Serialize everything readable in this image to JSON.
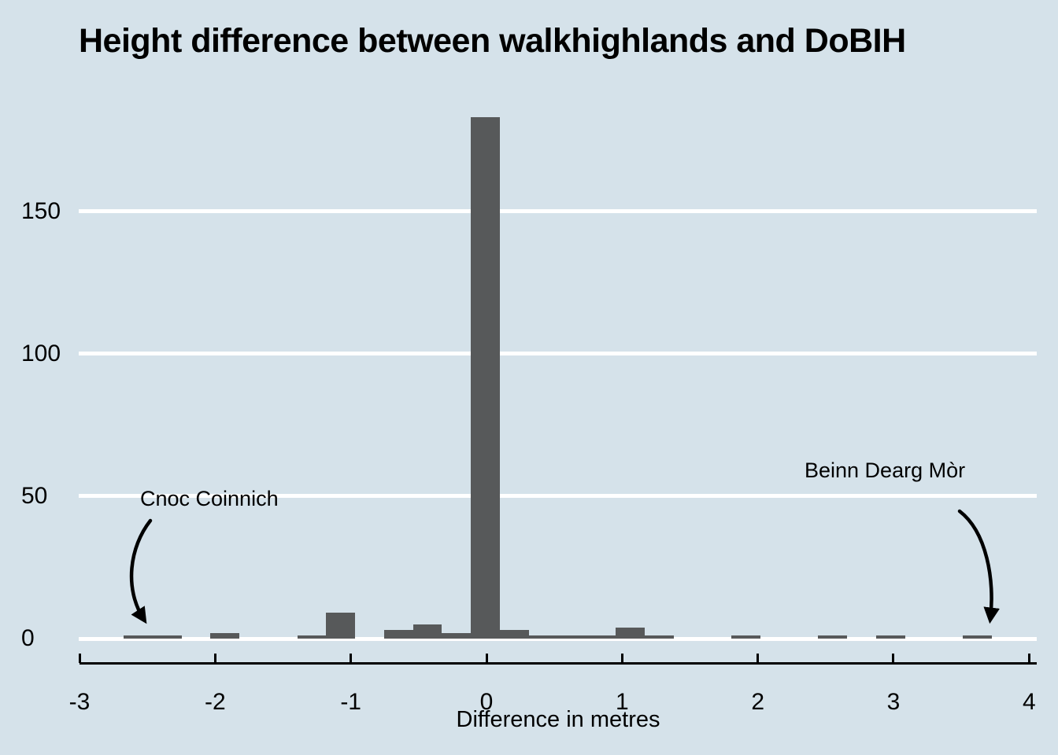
{
  "chart_data": {
    "type": "bar",
    "title": "Height difference between walkhighlands and DoBIH",
    "xlabel": "Difference in metres",
    "ylabel": "",
    "x_ticks": [
      -3,
      -2,
      -1,
      0,
      1,
      2,
      3,
      4
    ],
    "y_ticks": [
      0,
      50,
      100,
      150
    ],
    "xlim": [
      -3,
      4.05
    ],
    "ylim": [
      0,
      190
    ],
    "grid": "horizontal white lines at y ticks, drawn behind bars",
    "legend": "none",
    "bins": {
      "start": -2.675,
      "width": 0.21333,
      "counts": [
        1,
        1,
        0,
        2,
        0,
        0,
        1,
        9,
        0,
        3,
        5,
        2,
        183,
        3,
        1,
        1,
        1,
        4,
        1,
        0,
        0,
        1,
        0,
        0,
        1,
        0,
        1,
        0,
        0,
        1
      ],
      "total": 222
    },
    "annotations": [
      {
        "label": "Cnoc Coinnich",
        "points_to_x": -2.57,
        "points_to_count": 1
      },
      {
        "label": "Beinn Dearg Mòr",
        "points_to_x": 3.62,
        "points_to_count": 1
      }
    ],
    "colors": {
      "background": "#d5e2ea",
      "bar": "#57595a",
      "gridline": "#ffffff",
      "text": "#000000",
      "axis": "#000000"
    }
  }
}
